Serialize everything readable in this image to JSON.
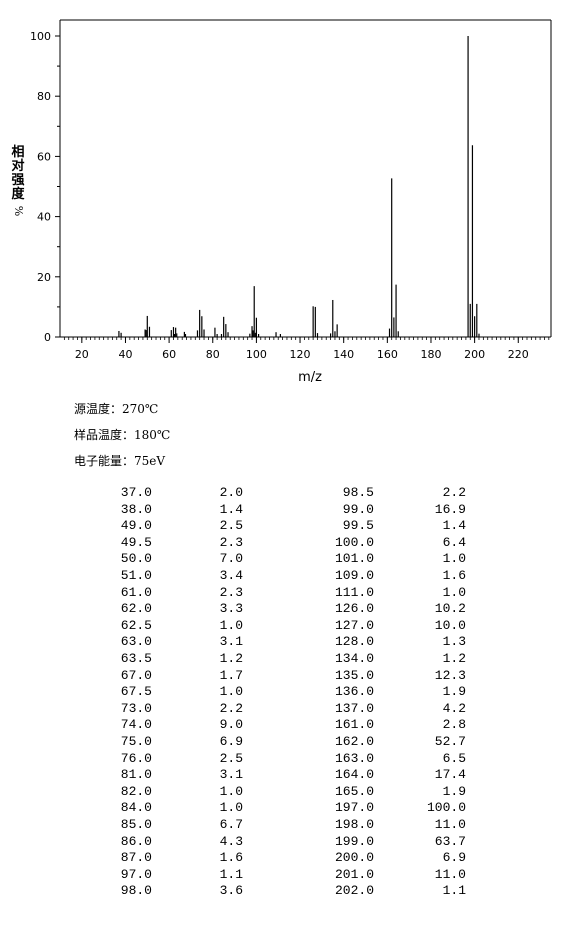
{
  "chart_data": {
    "type": "bar",
    "ylabel": "相对强度",
    "ylabel_unit": "%",
    "xlabel": "m/z",
    "xlim": [
      10,
      235
    ],
    "ylim": [
      0,
      100
    ],
    "x_ticks": [
      "20",
      "40",
      "60",
      "80",
      "100",
      "120",
      "140",
      "160",
      "180",
      "200",
      "220"
    ],
    "y_ticks": [
      "0",
      "20",
      "40",
      "60",
      "80",
      "100"
    ],
    "peaks": [
      {
        "mz": 37.0,
        "intensity": 2.0
      },
      {
        "mz": 38.0,
        "intensity": 1.4
      },
      {
        "mz": 49.0,
        "intensity": 2.5
      },
      {
        "mz": 49.5,
        "intensity": 2.3
      },
      {
        "mz": 50.0,
        "intensity": 7.0
      },
      {
        "mz": 51.0,
        "intensity": 3.4
      },
      {
        "mz": 61.0,
        "intensity": 2.3
      },
      {
        "mz": 62.0,
        "intensity": 3.3
      },
      {
        "mz": 62.5,
        "intensity": 1.0
      },
      {
        "mz": 63.0,
        "intensity": 3.1
      },
      {
        "mz": 63.5,
        "intensity": 1.2
      },
      {
        "mz": 67.0,
        "intensity": 1.7
      },
      {
        "mz": 67.5,
        "intensity": 1.0
      },
      {
        "mz": 73.0,
        "intensity": 2.2
      },
      {
        "mz": 74.0,
        "intensity": 9.0
      },
      {
        "mz": 75.0,
        "intensity": 6.9
      },
      {
        "mz": 76.0,
        "intensity": 2.5
      },
      {
        "mz": 81.0,
        "intensity": 3.1
      },
      {
        "mz": 82.0,
        "intensity": 1.0
      },
      {
        "mz": 84.0,
        "intensity": 1.0
      },
      {
        "mz": 85.0,
        "intensity": 6.7
      },
      {
        "mz": 86.0,
        "intensity": 4.3
      },
      {
        "mz": 87.0,
        "intensity": 1.6
      },
      {
        "mz": 97.0,
        "intensity": 1.1
      },
      {
        "mz": 98.0,
        "intensity": 3.6
      },
      {
        "mz": 98.5,
        "intensity": 2.2
      },
      {
        "mz": 99.0,
        "intensity": 16.9
      },
      {
        "mz": 99.5,
        "intensity": 1.4
      },
      {
        "mz": 100.0,
        "intensity": 6.4
      },
      {
        "mz": 101.0,
        "intensity": 1.0
      },
      {
        "mz": 109.0,
        "intensity": 1.6
      },
      {
        "mz": 111.0,
        "intensity": 1.0
      },
      {
        "mz": 126.0,
        "intensity": 10.2
      },
      {
        "mz": 127.0,
        "intensity": 10.0
      },
      {
        "mz": 128.0,
        "intensity": 1.3
      },
      {
        "mz": 134.0,
        "intensity": 1.2
      },
      {
        "mz": 135.0,
        "intensity": 12.3
      },
      {
        "mz": 136.0,
        "intensity": 1.9
      },
      {
        "mz": 137.0,
        "intensity": 4.2
      },
      {
        "mz": 161.0,
        "intensity": 2.8
      },
      {
        "mz": 162.0,
        "intensity": 52.7
      },
      {
        "mz": 163.0,
        "intensity": 6.5
      },
      {
        "mz": 164.0,
        "intensity": 17.4
      },
      {
        "mz": 165.0,
        "intensity": 1.9
      },
      {
        "mz": 197.0,
        "intensity": 100.0
      },
      {
        "mz": 198.0,
        "intensity": 11.0
      },
      {
        "mz": 199.0,
        "intensity": 63.7
      },
      {
        "mz": 200.0,
        "intensity": 6.9
      },
      {
        "mz": 201.0,
        "intensity": 11.0
      },
      {
        "mz": 202.0,
        "intensity": 1.1
      }
    ]
  },
  "conditions": {
    "source_temp": "源温度：270℃",
    "sample_temp": "样品温度：180℃",
    "electron_energy": "电子能量：75eV"
  },
  "peak_table": {
    "rows": [
      [
        "37.0",
        "2.0",
        "98.5",
        "2.2"
      ],
      [
        "38.0",
        "1.4",
        "99.0",
        "16.9"
      ],
      [
        "49.0",
        "2.5",
        "99.5",
        "1.4"
      ],
      [
        "49.5",
        "2.3",
        "100.0",
        "6.4"
      ],
      [
        "50.0",
        "7.0",
        "101.0",
        "1.0"
      ],
      [
        "51.0",
        "3.4",
        "109.0",
        "1.6"
      ],
      [
        "61.0",
        "2.3",
        "111.0",
        "1.0"
      ],
      [
        "62.0",
        "3.3",
        "126.0",
        "10.2"
      ],
      [
        "62.5",
        "1.0",
        "127.0",
        "10.0"
      ],
      [
        "63.0",
        "3.1",
        "128.0",
        "1.3"
      ],
      [
        "63.5",
        "1.2",
        "134.0",
        "1.2"
      ],
      [
        "67.0",
        "1.7",
        "135.0",
        "12.3"
      ],
      [
        "67.5",
        "1.0",
        "136.0",
        "1.9"
      ],
      [
        "73.0",
        "2.2",
        "137.0",
        "4.2"
      ],
      [
        "74.0",
        "9.0",
        "161.0",
        "2.8"
      ],
      [
        "75.0",
        "6.9",
        "162.0",
        "52.7"
      ],
      [
        "76.0",
        "2.5",
        "163.0",
        "6.5"
      ],
      [
        "81.0",
        "3.1",
        "164.0",
        "17.4"
      ],
      [
        "82.0",
        "1.0",
        "165.0",
        "1.9"
      ],
      [
        "84.0",
        "1.0",
        "197.0",
        "100.0"
      ],
      [
        "85.0",
        "6.7",
        "198.0",
        "11.0"
      ],
      [
        "86.0",
        "4.3",
        "199.0",
        "63.7"
      ],
      [
        "87.0",
        "1.6",
        "200.0",
        "6.9"
      ],
      [
        "97.0",
        "1.1",
        "201.0",
        "11.0"
      ],
      [
        "98.0",
        "3.6",
        "202.0",
        "1.1"
      ]
    ]
  }
}
